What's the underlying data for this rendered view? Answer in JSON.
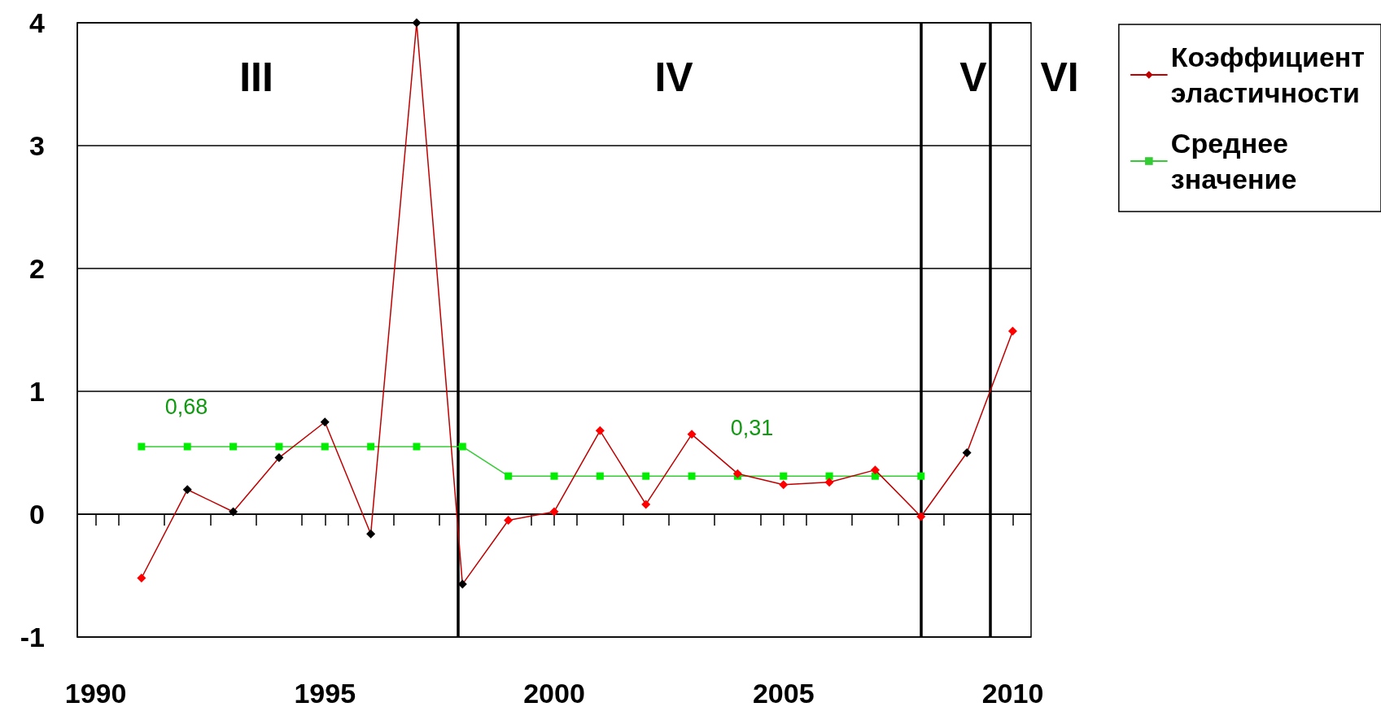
{
  "chart_data": {
    "type": "line",
    "x": [
      1991,
      1992,
      1993,
      1994,
      1995,
      1996,
      1997,
      1998,
      1999,
      2000,
      2001,
      2002,
      2003,
      2004,
      2005,
      2006,
      2007,
      2008,
      2009,
      2010
    ],
    "series": [
      {
        "name": "Коэффициент эластичности",
        "color": "#c00000",
        "marker": "diamond",
        "colors": [
          "#ff0000",
          "#000000",
          "#000000",
          "#000000",
          "#000000",
          "#000000",
          "#000000",
          "#000000",
          "#ff0000",
          "#ff0000",
          "#ff0000",
          "#ff0000",
          "#ff0000",
          "#ff0000",
          "#ff0000",
          "#ff0000",
          "#ff0000",
          "#ff0000",
          "#000000",
          "#ff0000"
        ],
        "values": [
          -0.52,
          0.2,
          0.02,
          0.46,
          0.75,
          -0.16,
          4.0,
          -0.57,
          -0.05,
          0.02,
          0.68,
          0.08,
          0.65,
          0.33,
          0.24,
          0.26,
          0.36,
          -0.02,
          0.5,
          1.49
        ]
      },
      {
        "name": "Среднее значение",
        "color": "#33cc33",
        "marker": "square",
        "colors": [
          "#00ee00",
          "#00ee00",
          "#00ee00",
          "#00ee00",
          "#00ee00",
          "#00ee00",
          "#00ee00",
          "#00ee00",
          "#00ee00",
          "#00ee00",
          "#00ee00",
          "#00ee00",
          "#00ee00",
          "#00ee00",
          "#00ee00",
          "#00ee00",
          "#00ee00",
          "#00ee00",
          null,
          null
        ],
        "values": [
          0.55,
          0.55,
          0.55,
          0.55,
          0.55,
          0.55,
          0.55,
          0.55,
          0.31,
          0.31,
          0.31,
          0.31,
          0.31,
          0.31,
          0.31,
          0.31,
          0.31,
          0.31,
          null,
          null
        ]
      }
    ],
    "xlim": [
      1989.6,
      2010.4
    ],
    "xticks": [
      1990,
      {
        "value": 1990.5,
        "label": null
      },
      {
        "value": 1991.5,
        "label": null
      },
      {
        "value": 1992.5,
        "label": null
      },
      {
        "value": 1993.5,
        "label": null
      },
      {
        "value": 1994.5,
        "label": null
      },
      1995,
      {
        "value": 1995.5,
        "label": null
      },
      {
        "value": 1996.5,
        "label": null
      },
      {
        "value": 1997.5,
        "label": null
      },
      {
        "value": 1998.5,
        "label": null
      },
      {
        "value": 1999.5,
        "label": null
      },
      2000,
      {
        "value": 2000.5,
        "label": null
      },
      {
        "value": 2001.5,
        "label": null
      },
      {
        "value": 2002.5,
        "label": null
      },
      {
        "value": 2003.5,
        "label": null
      },
      {
        "value": 2004.5,
        "label": null
      },
      2005,
      {
        "value": 2005.5,
        "label": null
      },
      {
        "value": 2006.5,
        "label": null
      },
      {
        "value": 2007.5,
        "label": null
      },
      {
        "value": 2008.5,
        "label": null
      },
      {
        "value": 2009.5,
        "label": null
      },
      2010
    ],
    "ylim": [
      -1,
      4
    ],
    "yticks": [
      -1,
      0,
      1,
      2,
      3,
      4
    ],
    "grid": "y",
    "legend": "top right",
    "ref_lines": [
      {
        "axis": "x",
        "value": 1997.9,
        "color": "#000000",
        "line_style": "solid"
      },
      {
        "axis": "x",
        "value": 2008.0,
        "color": "#000000",
        "line_style": "solid"
      },
      {
        "axis": "x",
        "value": 2009.5,
        "color": "#000000",
        "line_style": "solid"
      }
    ],
    "annotations": [
      "III",
      "IV",
      "V",
      "VI",
      "0,68",
      "0,31"
    ]
  }
}
